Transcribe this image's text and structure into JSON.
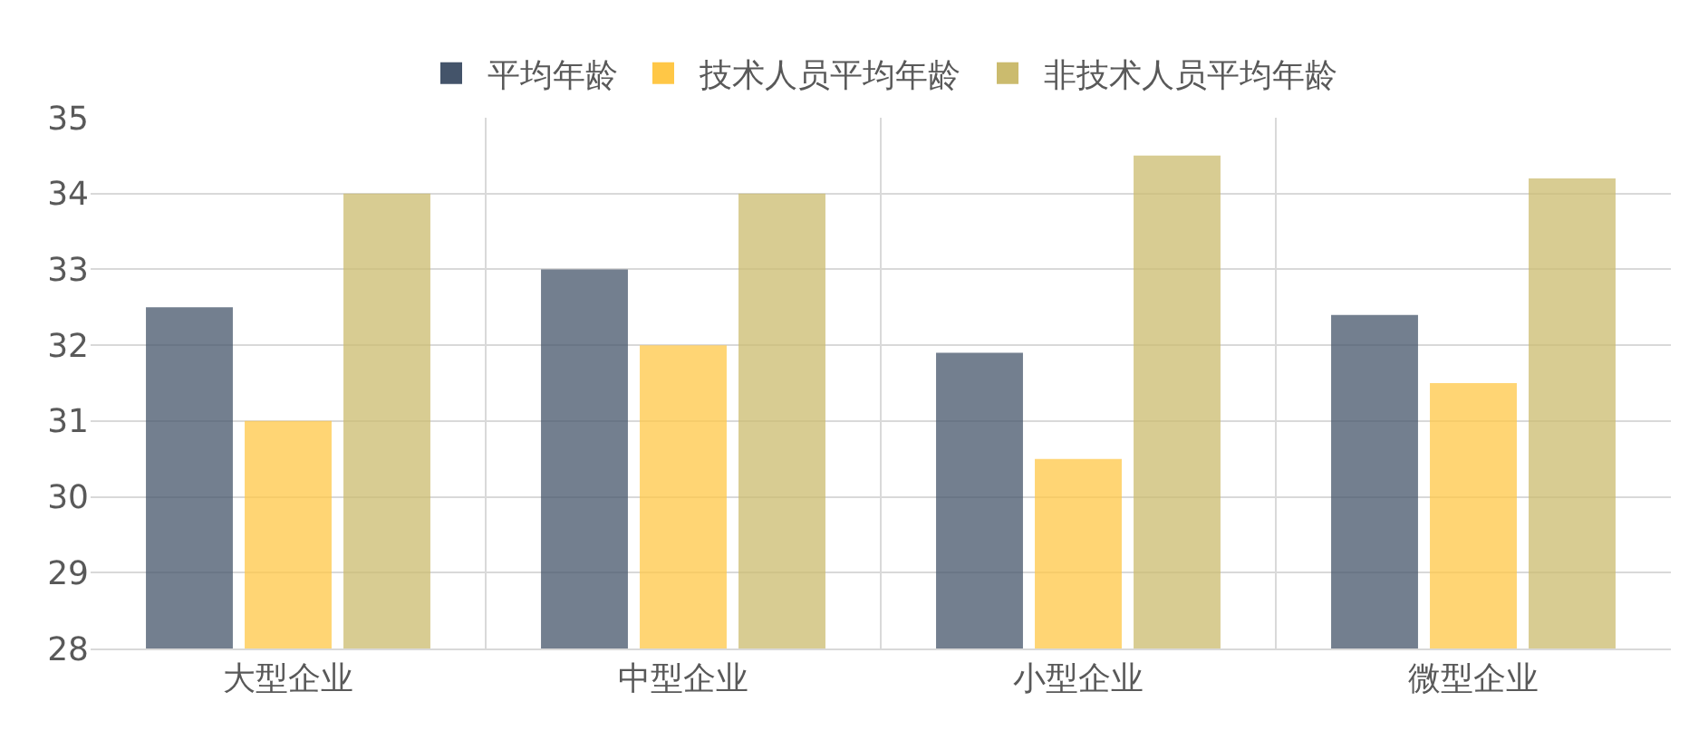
{
  "chart_data": {
    "type": "bar",
    "categories": [
      "大型企业",
      "中型企业",
      "小型企业",
      "微型企业"
    ],
    "series": [
      {
        "name": "平均年龄",
        "color": "#44546a",
        "values": [
          32.5,
          33,
          31.9,
          32.4
        ]
      },
      {
        "name": "技术人员平均年龄",
        "color": "#ffc746",
        "values": [
          31,
          32,
          30.5,
          31.5
        ]
      },
      {
        "name": "非技术人员平均年龄",
        "color": "#cbbb6e",
        "values": [
          34,
          34,
          34.5,
          34.2
        ]
      }
    ],
    "ylim": [
      28,
      35
    ],
    "yticks": [
      28,
      29,
      30,
      31,
      32,
      33,
      34,
      35
    ],
    "grid": true,
    "legend": "top"
  }
}
